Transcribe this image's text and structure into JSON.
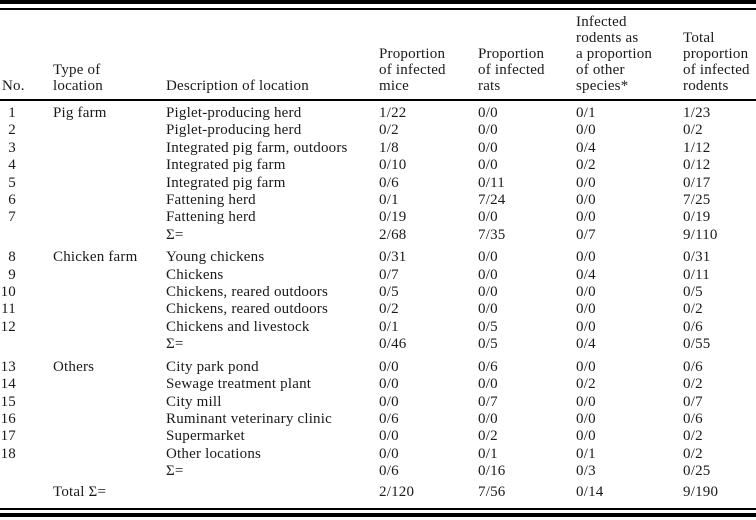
{
  "table": {
    "columns": [
      {
        "label": "No."
      },
      {
        "label": "Type of\nlocation"
      },
      {
        "label": "Description of location"
      },
      {
        "label": "Proportion\nof infected\nmice"
      },
      {
        "label": "Proportion\nof infected\nrats"
      },
      {
        "label": "Infected\nrodents as\na proportion\nof other\nspecies*"
      },
      {
        "label": "Total\nproportion\nof infected\nrodents"
      }
    ],
    "groups": [
      {
        "type": "Pig farm",
        "rows": [
          {
            "no": "1",
            "desc": "Piglet-producing herd",
            "mice": "1/22",
            "rats": "0/0",
            "other": "0/1",
            "total": "1/23"
          },
          {
            "no": "2",
            "desc": "Piglet-producing herd",
            "mice": "0/2",
            "rats": "0/0",
            "other": "0/0",
            "total": "0/2"
          },
          {
            "no": "3",
            "desc": "Integrated pig farm, outdoors",
            "mice": "1/8",
            "rats": "0/0",
            "other": "0/4",
            "total": "1/12"
          },
          {
            "no": "4",
            "desc": "Integrated pig farm",
            "mice": "0/10",
            "rats": "0/0",
            "other": "0/2",
            "total": "0/12"
          },
          {
            "no": "5",
            "desc": "Integrated pig farm",
            "mice": "0/6",
            "rats": "0/11",
            "other": "0/0",
            "total": "0/17"
          },
          {
            "no": "6",
            "desc": "Fattening herd",
            "mice": "0/1",
            "rats": "7/24",
            "other": "0/0",
            "total": "7/25"
          },
          {
            "no": "7",
            "desc": "Fattening herd",
            "mice": "0/19",
            "rats": "0/0",
            "other": "0/0",
            "total": "0/19"
          }
        ],
        "sigma": {
          "label": "Σ=",
          "mice": "2/68",
          "rats": "7/35",
          "other": "0/7",
          "total": "9/110"
        }
      },
      {
        "type": "Chicken farm",
        "rows": [
          {
            "no": "8",
            "desc": "Young chickens",
            "mice": "0/31",
            "rats": "0/0",
            "other": "0/0",
            "total": "0/31"
          },
          {
            "no": "9",
            "desc": "Chickens",
            "mice": "0/7",
            "rats": "0/0",
            "other": "0/4",
            "total": "0/11"
          },
          {
            "no": "10",
            "desc": "Chickens, reared outdoors",
            "mice": "0/5",
            "rats": "0/0",
            "other": "0/0",
            "total": "0/5"
          },
          {
            "no": "11",
            "desc": "Chickens, reared outdoors",
            "mice": "0/2",
            "rats": "0/0",
            "other": "0/0",
            "total": "0/2"
          },
          {
            "no": "12",
            "desc": "Chickens and livestock",
            "mice": "0/1",
            "rats": "0/5",
            "other": "0/0",
            "total": "0/6"
          }
        ],
        "sigma": {
          "label": "Σ=",
          "mice": "0/46",
          "rats": "0/5",
          "other": "0/4",
          "total": "0/55"
        }
      },
      {
        "type": "Others",
        "rows": [
          {
            "no": "13",
            "desc": "City park pond",
            "mice": "0/0",
            "rats": "0/6",
            "other": "0/0",
            "total": "0/6"
          },
          {
            "no": "14",
            "desc": "Sewage treatment plant",
            "mice": "0/0",
            "rats": "0/0",
            "other": "0/2",
            "total": "0/2"
          },
          {
            "no": "15",
            "desc": "City mill",
            "mice": "0/0",
            "rats": "0/7",
            "other": "0/0",
            "total": "0/7"
          },
          {
            "no": "16",
            "desc": "Ruminant veterinary clinic",
            "mice": "0/6",
            "rats": "0/0",
            "other": "0/0",
            "total": "0/6"
          },
          {
            "no": "17",
            "desc": "Supermarket",
            "mice": "0/0",
            "rats": "0/2",
            "other": "0/0",
            "total": "0/2"
          },
          {
            "no": "18",
            "desc": "Other locations",
            "mice": "0/0",
            "rats": "0/1",
            "other": "0/1",
            "total": "0/2"
          }
        ],
        "sigma": {
          "label": "Σ=",
          "mice": "0/6",
          "rats": "0/16",
          "other": "0/3",
          "total": "0/25"
        }
      }
    ],
    "total": {
      "label": "Total Σ=",
      "mice": "2/120",
      "rats": "7/56",
      "other": "0/14",
      "total": "9/190"
    }
  }
}
